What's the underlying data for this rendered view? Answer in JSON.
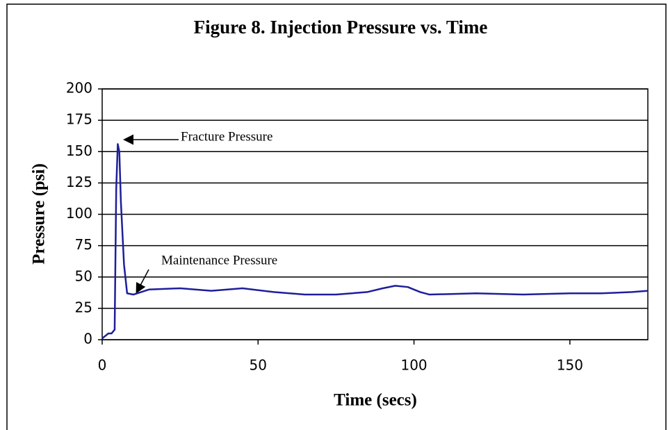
{
  "chart_data": {
    "type": "line",
    "title": "Figure 8.  Injection Pressure vs. Time",
    "x_label": "Time (secs)",
    "y_label": "Pressure (psi)",
    "annotations": [
      "Fracture Pressure",
      "Maintenance Pressure"
    ],
    "x": [
      0,
      1,
      2,
      3,
      4,
      4.5,
      5,
      5.5,
      6,
      7,
      8,
      10,
      15,
      25,
      35,
      45,
      55,
      65,
      75,
      85,
      90,
      94,
      98,
      102,
      105,
      120,
      135,
      150,
      160,
      170,
      175
    ],
    "series": [
      {
        "name": "Pressure",
        "color": "#1e1e9c",
        "values": [
          1,
          3,
          5,
          5,
          8,
          120,
          156,
          150,
          110,
          60,
          37,
          36,
          40,
          41,
          39,
          41,
          38,
          36,
          36,
          38,
          41,
          43,
          42,
          38,
          36,
          37,
          36,
          37,
          37,
          38,
          39
        ]
      }
    ],
    "xlim": [
      0,
      175
    ],
    "xticks": [
      0,
      50,
      100,
      150
    ],
    "ylim": [
      0,
      200
    ],
    "yticks": [
      0,
      25,
      50,
      75,
      100,
      125,
      150,
      175,
      200
    ],
    "grid": true
  }
}
